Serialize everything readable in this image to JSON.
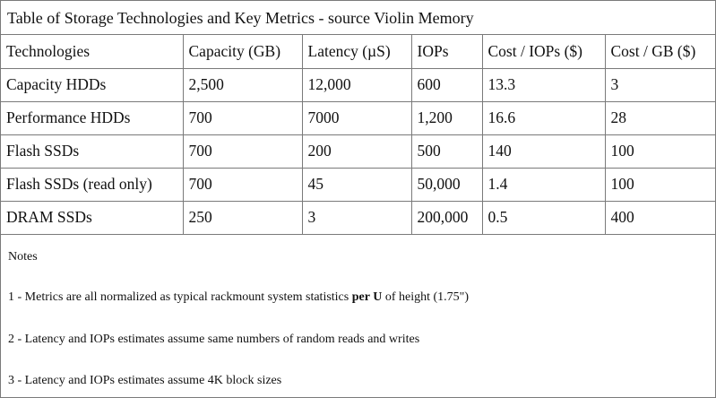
{
  "title": "Table of Storage Technologies and Key Metrics - source Violin Memory",
  "table": {
    "headers": [
      "Technologies",
      "Capacity (GB)",
      "Latency (µS)",
      "IOPs",
      "Cost / IOPs ($)",
      "Cost / GB ($)"
    ],
    "rows": [
      [
        "Capacity HDDs",
        "2,500",
        "12,000",
        "600",
        "13.3",
        "3"
      ],
      [
        "Performance HDDs",
        "700",
        "7000",
        "1,200",
        "16.6",
        "28"
      ],
      [
        "Flash SSDs",
        "700",
        "200",
        "500",
        "140",
        "100"
      ],
      [
        "Flash SSDs (read only)",
        "700",
        "45",
        "50,000",
        "1.4",
        "100"
      ],
      [
        "DRAM SSDs",
        "250",
        "3",
        "200,000",
        "0.5",
        "400"
      ]
    ]
  },
  "notes": {
    "heading": "Notes",
    "note1_pre": "1 - Metrics are all normalized as typical rackmount system statistics ",
    "note1_bold": "per U",
    "note1_post": " of height (1.75\")",
    "note2": "2 - Latency and IOPs estimates assume same numbers of random reads and writes",
    "note3": "3 - Latency and IOPs estimates assume 4K block sizes"
  }
}
